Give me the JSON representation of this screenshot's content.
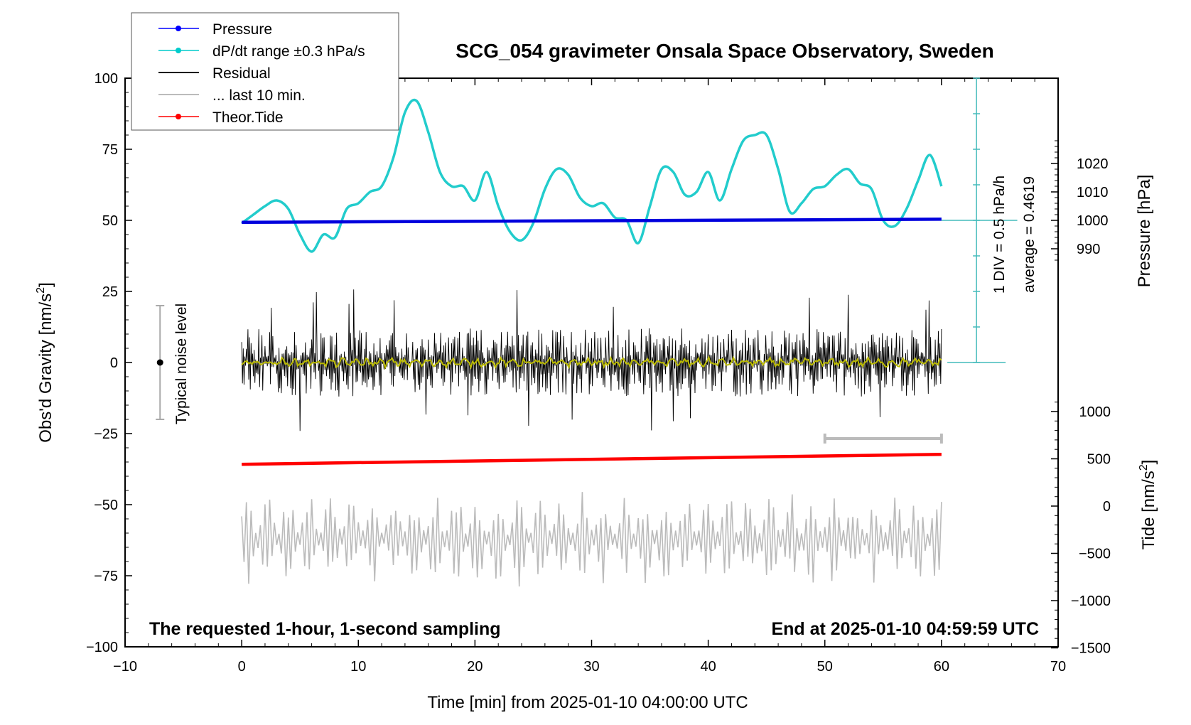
{
  "chart_data": {
    "type": "line",
    "title": "SCG_054 gravimeter Onsala Space Observatory, Sweden",
    "xlabel": "Time [min] from 2025-01-10 04:00:00 UTC",
    "ylabel_left": "Obs'd Gravity [nm/s",
    "ylabel_left_sup": "2",
    "ylabel_left_end": "]",
    "ylabel_pressure": "Pressure [hPa]",
    "ylabel_tide": "Tide [nm/s",
    "ylabel_tide_sup": "2",
    "ylabel_tide_end": "]",
    "xlim": [
      -10,
      70
    ],
    "ylim": [
      -100,
      100
    ],
    "x_ticks": [
      "-10",
      "0",
      "10",
      "20",
      "30",
      "40",
      "50",
      "60",
      "70"
    ],
    "y_ticks": [
      "100",
      "75",
      "50",
      "25",
      "0",
      "-25",
      "-50",
      "-75",
      "-100"
    ],
    "pressure_ticks": [
      "1020",
      "1010",
      "1000",
      "990"
    ],
    "tide_ticks": [
      "1000",
      "500",
      "0",
      "-500",
      "-1000",
      "-1500"
    ],
    "legend": [
      {
        "label": "Pressure",
        "color": "#0000ff",
        "marker": true
      },
      {
        "label": "dP/dt range ±0.3 hPa/s",
        "color": "#00cccc",
        "marker": true
      },
      {
        "label": "Residual",
        "color": "#000000",
        "marker": false
      },
      {
        "label": "... last 10 min.",
        "color": "#bbbbbb",
        "marker": false
      },
      {
        "label": "Theor.Tide",
        "color": "#ff0000",
        "marker": true
      }
    ],
    "noise_label": "Typical noise level",
    "noise_range": [
      -20,
      20
    ],
    "scale_label_1": "1 DIV = 0.5 hPa/h",
    "scale_label_2": "average = 0.4619",
    "bottom_left_note": "The requested 1-hour, 1-second sampling",
    "bottom_right_note": "End at 2025-01-10 04:59:59 UTC",
    "last10_bar": [
      50,
      60
    ],
    "series": [
      {
        "name": "Pressure",
        "color": "#0000dd",
        "x": [
          0,
          60
        ],
        "y": [
          49.3,
          50.4
        ]
      },
      {
        "name": "dP/dt",
        "color": "#22cccc",
        "x": [
          0,
          1,
          2,
          3,
          4,
          5,
          6,
          7,
          8,
          9,
          10,
          11,
          12,
          13,
          14,
          15,
          16,
          17,
          18,
          19,
          20,
          21,
          22,
          23,
          24,
          25,
          26,
          27,
          28,
          29,
          30,
          31,
          32,
          33,
          34,
          35,
          36,
          37,
          38,
          39,
          40,
          41,
          42,
          43,
          44,
          45,
          46,
          47,
          48,
          49,
          50,
          51,
          52,
          53,
          54,
          55,
          56,
          57,
          58,
          59,
          60
        ],
        "y": [
          49,
          52,
          55,
          57,
          54,
          45,
          39,
          45,
          44,
          54,
          56,
          60,
          62,
          72,
          88,
          92,
          81,
          67,
          62,
          62,
          57,
          67,
          55,
          46,
          43,
          49,
          61,
          68,
          66,
          58,
          55,
          56,
          51,
          50,
          42,
          55,
          68,
          67,
          59,
          60,
          67,
          57,
          68,
          78,
          80,
          80,
          68,
          53,
          56,
          61,
          62,
          66,
          68,
          63,
          61,
          50,
          48,
          54,
          64,
          73,
          62
        ]
      },
      {
        "name": "Residual",
        "color": "#000000",
        "x_range": [
          0,
          60
        ],
        "amplitude": 12,
        "spike_amplitude": 26
      },
      {
        "name": "Residual smoothed",
        "color": "#bbbb00",
        "x_range": [
          0,
          60
        ],
        "amplitude": 1.5
      },
      {
        "name": "Theor.Tide",
        "color": "#ff0000",
        "x": [
          0,
          60
        ],
        "y": [
          -35.8,
          -32.3
        ]
      },
      {
        "name": "last 10 min.",
        "color": "#bbbbbb",
        "x_range": [
          0,
          60
        ],
        "center": -62,
        "amplitude": 14
      }
    ]
  }
}
